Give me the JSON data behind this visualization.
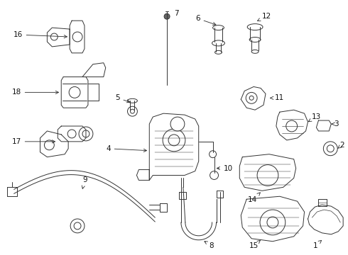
{
  "background_color": "#ffffff",
  "fig_width": 4.9,
  "fig_height": 3.6,
  "dpi": 100,
  "line_color": "#333333",
  "text_color": "#111111",
  "font_size": 7.5,
  "line_width": 0.7
}
